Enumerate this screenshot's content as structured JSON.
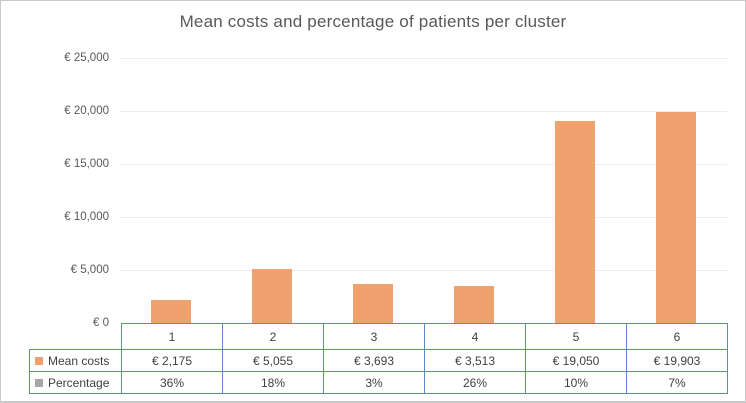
{
  "chart_data": {
    "type": "bar",
    "title": "Mean costs and percentage of patients per cluster",
    "categories": [
      "1",
      "2",
      "3",
      "4",
      "5",
      "6"
    ],
    "series": [
      {
        "name": "Mean costs",
        "values": [
          2175,
          5055,
          3693,
          3513,
          19050,
          19903
        ],
        "formatted": [
          "€ 2,175",
          "€ 5,055",
          "€ 3,693",
          "€ 3,513",
          "€ 19,050",
          "€ 19,903"
        ],
        "color": "#F0A26E",
        "plotted": true
      },
      {
        "name": "Percentage",
        "values": [
          36,
          18,
          3,
          26,
          10,
          7
        ],
        "formatted": [
          "36%",
          "18%",
          "3%",
          "26%",
          "10%",
          "7%"
        ],
        "color": "#A6A6A6",
        "plotted": false
      }
    ],
    "ylim": [
      0,
      25000
    ],
    "y_ticks": [
      {
        "label": "€ 25,000",
        "value": 25000
      },
      {
        "label": "€ 20,000",
        "value": 20000
      },
      {
        "label": "€ 15,000",
        "value": 15000
      },
      {
        "label": "€ 10,000",
        "value": 10000
      },
      {
        "label": "€ 5,000",
        "value": 5000
      },
      {
        "label": "€ 0",
        "value": 0
      }
    ],
    "grid": true,
    "legend_position": "data-table-left"
  },
  "colors": {
    "frame_border": "#c9c9c9",
    "title_color": "#595959",
    "axis_text": "#595959",
    "table_text": "#3f3f3f",
    "table_border": "#5b87cc",
    "gridline": "#ededed"
  }
}
